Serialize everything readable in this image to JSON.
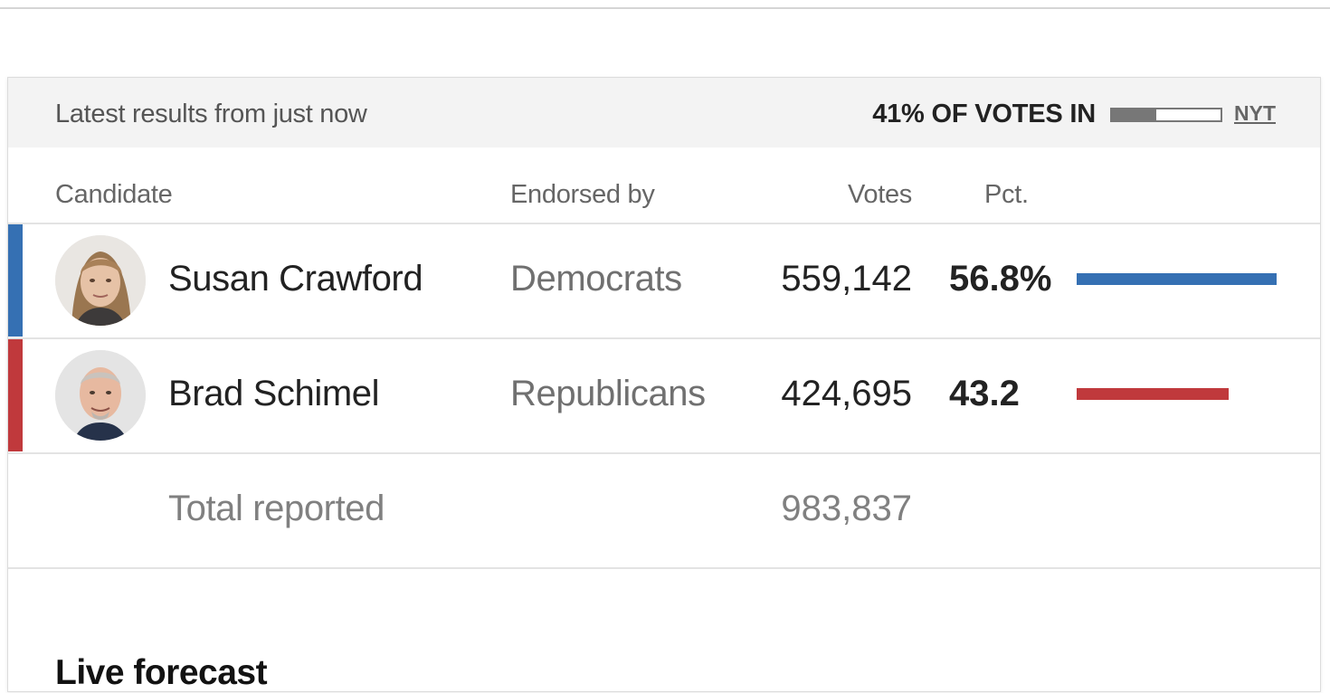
{
  "status": {
    "latest_text": "Latest results from just now",
    "votes_in_label": "41% OF VOTES IN",
    "votes_in_fraction": 0.41,
    "source_label": "NYT"
  },
  "table": {
    "headers": {
      "candidate": "Candidate",
      "endorsed_by": "Endorsed by",
      "votes": "Votes",
      "pct": "Pct."
    },
    "candidates": [
      {
        "name": "Susan Crawford",
        "endorsed_by": "Democrats",
        "votes": "559,142",
        "pct": "56.8%",
        "share": 0.568,
        "color": "#3570b3",
        "avatar": "candidate-photo-icon"
      },
      {
        "name": "Brad Schimel",
        "endorsed_by": "Republicans",
        "votes": "424,695",
        "pct": "43.2",
        "share": 0.432,
        "color": "#c0393c",
        "avatar": "candidate-photo-icon"
      }
    ],
    "total": {
      "label": "Total reported",
      "votes": "983,837"
    }
  },
  "forecast": {
    "title": "Live forecast"
  }
}
